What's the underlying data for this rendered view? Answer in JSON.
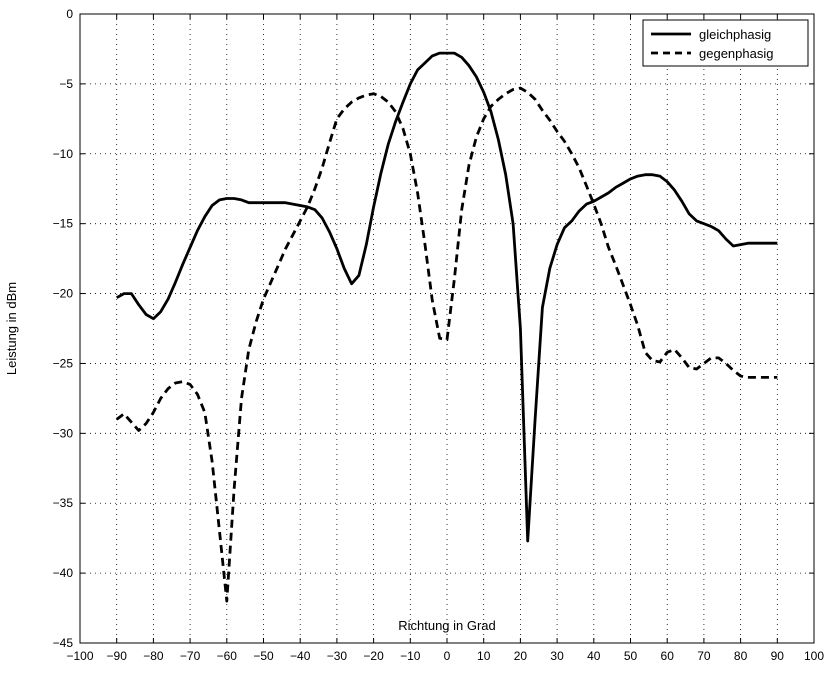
{
  "chart_data": {
    "type": "line",
    "title": "",
    "xlabel": "Richtung in Grad",
    "ylabel": "Leistung in dBm",
    "xlim": [
      -100,
      100
    ],
    "ylim": [
      -45,
      0
    ],
    "xticks": [
      -100,
      -90,
      -80,
      -70,
      -60,
      -50,
      -40,
      -30,
      -20,
      -10,
      0,
      10,
      20,
      30,
      40,
      50,
      60,
      70,
      80,
      90,
      100
    ],
    "yticks": [
      0,
      -5,
      -10,
      -15,
      -20,
      -25,
      -30,
      -35,
      -40,
      -45
    ],
    "grid": true,
    "legend_position": "top-right",
    "series": [
      {
        "name": "gleichphasig",
        "style": "solid",
        "color": "#000000",
        "x": [
          -90,
          -88,
          -86,
          -84,
          -82,
          -80,
          -78,
          -76,
          -74,
          -72,
          -70,
          -68,
          -66,
          -64,
          -62,
          -60,
          -58,
          -56,
          -54,
          -52,
          -50,
          -48,
          -46,
          -44,
          -42,
          -40,
          -38,
          -36,
          -34,
          -32,
          -30,
          -28,
          -26,
          -24,
          -22,
          -20,
          -18,
          -16,
          -14,
          -12,
          -10,
          -8,
          -6,
          -4,
          -2,
          0,
          2,
          4,
          6,
          8,
          10,
          12,
          14,
          16,
          18,
          20,
          22,
          24,
          26,
          28,
          30,
          32,
          34,
          36,
          38,
          40,
          42,
          44,
          46,
          48,
          50,
          52,
          54,
          56,
          58,
          60,
          62,
          64,
          66,
          68,
          70,
          72,
          74,
          76,
          78,
          80,
          82,
          84,
          86,
          88,
          90
        ],
        "values": [
          -20.3,
          -20.0,
          -20.0,
          -20.8,
          -21.5,
          -21.8,
          -21.3,
          -20.4,
          -19.2,
          -17.9,
          -16.7,
          -15.5,
          -14.5,
          -13.7,
          -13.3,
          -13.2,
          -13.2,
          -13.3,
          -13.5,
          -13.5,
          -13.5,
          -13.5,
          -13.5,
          -13.5,
          -13.6,
          -13.7,
          -13.8,
          -14.0,
          -14.6,
          -15.6,
          -16.8,
          -18.2,
          -19.3,
          -18.7,
          -16.5,
          -13.8,
          -11.4,
          -9.3,
          -7.7,
          -6.3,
          -5.0,
          -4.0,
          -3.5,
          -3.0,
          -2.8,
          -2.8,
          -2.8,
          -3.1,
          -3.7,
          -4.5,
          -5.6,
          -7.0,
          -9.0,
          -11.5,
          -15.0,
          -22.5,
          -37.7,
          -29.0,
          -21.0,
          -18.2,
          -16.5,
          -15.3,
          -14.8,
          -14.1,
          -13.6,
          -13.4,
          -13.1,
          -12.8,
          -12.4,
          -12.1,
          -11.8,
          -11.6,
          -11.5,
          -11.5,
          -11.6,
          -12.0,
          -12.6,
          -13.4,
          -14.3,
          -14.8,
          -15.0,
          -15.2,
          -15.5,
          -16.1,
          -16.6,
          -16.5,
          -16.4,
          -16.4,
          -16.4,
          -16.4,
          -16.4
        ]
      },
      {
        "name": "gegenphasig",
        "style": "dashed",
        "color": "#000000",
        "x": [
          -90,
          -88,
          -86,
          -84,
          -82,
          -80,
          -78,
          -76,
          -74,
          -72,
          -70,
          -68,
          -66,
          -64,
          -62,
          -60,
          -58,
          -56,
          -54,
          -52,
          -50,
          -48,
          -46,
          -44,
          -42,
          -40,
          -38,
          -36,
          -34,
          -32,
          -30,
          -28,
          -26,
          -24,
          -22,
          -20,
          -18,
          -16,
          -14,
          -12,
          -10,
          -8,
          -6,
          -4,
          -2,
          0,
          2,
          4,
          6,
          8,
          10,
          12,
          14,
          16,
          18,
          20,
          22,
          24,
          26,
          28,
          30,
          32,
          34,
          36,
          38,
          40,
          42,
          44,
          46,
          48,
          50,
          52,
          54,
          56,
          58,
          60,
          62,
          64,
          66,
          68,
          70,
          72,
          74,
          76,
          78,
          80,
          82,
          84,
          86,
          88,
          90
        ],
        "values": [
          -29.0,
          -28.6,
          -29.2,
          -29.8,
          -29.3,
          -28.5,
          -27.5,
          -26.8,
          -26.4,
          -26.3,
          -26.5,
          -27.2,
          -28.5,
          -32.0,
          -37.0,
          -42.0,
          -34.0,
          -27.5,
          -24.0,
          -22.0,
          -20.4,
          -19.2,
          -18.0,
          -16.8,
          -15.8,
          -14.8,
          -13.8,
          -12.5,
          -11.0,
          -9.2,
          -7.5,
          -6.8,
          -6.3,
          -6.0,
          -5.8,
          -5.7,
          -5.9,
          -6.3,
          -7.0,
          -8.2,
          -10.0,
          -12.8,
          -16.5,
          -20.5,
          -23.2,
          -23.3,
          -19.0,
          -14.0,
          -10.8,
          -8.8,
          -7.5,
          -6.6,
          -6.1,
          -5.7,
          -5.4,
          -5.3,
          -5.6,
          -6.1,
          -6.9,
          -7.6,
          -8.4,
          -9.1,
          -10.0,
          -11.0,
          -12.3,
          -13.6,
          -15.0,
          -16.7,
          -18.0,
          -19.4,
          -20.8,
          -22.3,
          -24.2,
          -24.8,
          -24.9,
          -24.2,
          -24.0,
          -24.6,
          -25.3,
          -25.4,
          -25.0,
          -24.6,
          -24.6,
          -25.0,
          -25.5,
          -25.9,
          -26.0,
          -26.0,
          -26.0,
          -26.0,
          -26.0
        ]
      }
    ]
  }
}
